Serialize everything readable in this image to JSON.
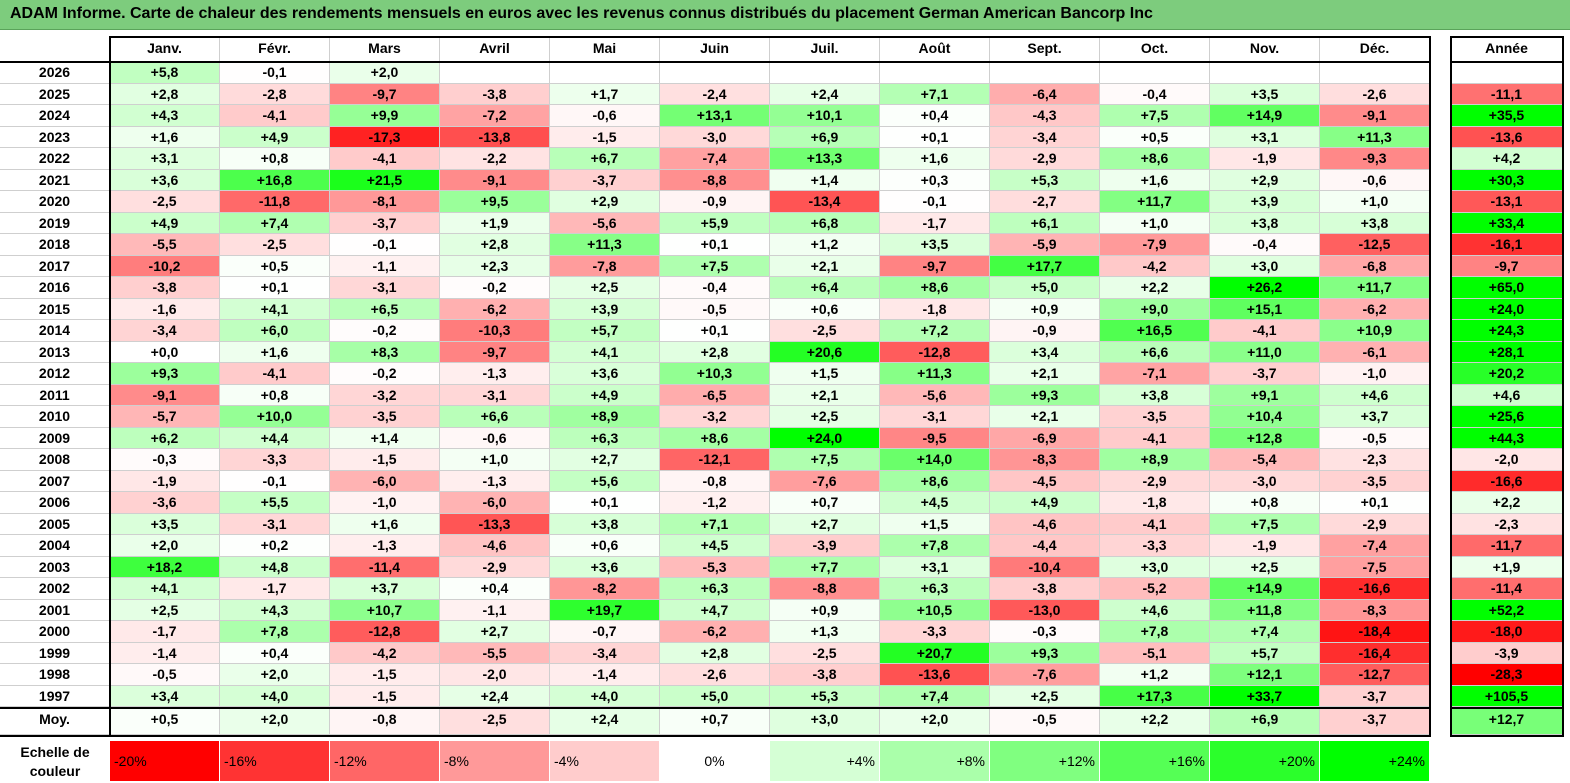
{
  "title": "ADAM Informe. Carte de chaleur des rendements mensuels en euros avec les revenus connus distribués du placement German American Bancorp Inc",
  "colors": {
    "title_bg": "#7dcc7d",
    "negative": "#ff0000",
    "neutral": "#ffffff",
    "positive": "#00ff00"
  },
  "chart_data": {
    "type": "heatmap",
    "months": [
      "Janv.",
      "Févr.",
      "Mars",
      "Avril",
      "Mai",
      "Juin",
      "Juil.",
      "Août",
      "Sept.",
      "Oct.",
      "Nov.",
      "Déc."
    ],
    "year_header": "Année",
    "average_label": "Moy.",
    "rows": [
      {
        "year": "2026",
        "values": [
          "+5,8",
          "-0,1",
          "+2,0",
          "",
          "",
          "",
          "",
          "",
          "",
          "",
          "",
          ""
        ],
        "annual": ""
      },
      {
        "year": "2025",
        "values": [
          "+2,8",
          "-2,8",
          "-9,7",
          "-3,8",
          "+1,7",
          "-2,4",
          "+2,4",
          "+7,1",
          "-6,4",
          "-0,4",
          "+3,5",
          "-2,6"
        ],
        "annual": "-11,1"
      },
      {
        "year": "2024",
        "values": [
          "+4,3",
          "-4,1",
          "+9,9",
          "-7,2",
          "-0,6",
          "+13,1",
          "+10,1",
          "+0,4",
          "-4,3",
          "+7,5",
          "+14,9",
          "-9,1"
        ],
        "annual": "+35,5"
      },
      {
        "year": "2023",
        "values": [
          "+1,6",
          "+4,9",
          "-17,3",
          "-13,8",
          "-1,5",
          "-3,0",
          "+6,9",
          "+0,1",
          "-3,4",
          "+0,5",
          "+3,1",
          "+11,3"
        ],
        "annual": "-13,6"
      },
      {
        "year": "2022",
        "values": [
          "+3,1",
          "+0,8",
          "-4,1",
          "-2,2",
          "+6,7",
          "-7,4",
          "+13,3",
          "+1,6",
          "-2,9",
          "+8,6",
          "-1,9",
          "-9,3"
        ],
        "annual": "+4,2"
      },
      {
        "year": "2021",
        "values": [
          "+3,6",
          "+16,8",
          "+21,5",
          "-9,1",
          "-3,7",
          "-8,8",
          "+1,4",
          "+0,3",
          "+5,3",
          "+1,6",
          "+2,9",
          "-0,6"
        ],
        "annual": "+30,3"
      },
      {
        "year": "2020",
        "values": [
          "-2,5",
          "-11,8",
          "-8,1",
          "+9,5",
          "+2,9",
          "-0,9",
          "-13,4",
          "-0,1",
          "-2,7",
          "+11,7",
          "+3,9",
          "+1,0"
        ],
        "annual": "-13,1"
      },
      {
        "year": "2019",
        "values": [
          "+4,9",
          "+7,4",
          "-3,7",
          "+1,9",
          "-5,6",
          "+5,9",
          "+6,8",
          "-1,7",
          "+6,1",
          "+1,0",
          "+3,8",
          "+3,8"
        ],
        "annual": "+33,4"
      },
      {
        "year": "2018",
        "values": [
          "-5,5",
          "-2,5",
          "-0,1",
          "+2,8",
          "+11,3",
          "+0,1",
          "+1,2",
          "+3,5",
          "-5,9",
          "-7,9",
          "-0,4",
          "-12,5"
        ],
        "annual": "-16,1"
      },
      {
        "year": "2017",
        "values": [
          "-10,2",
          "+0,5",
          "-1,1",
          "+2,3",
          "-7,8",
          "+7,5",
          "+2,1",
          "-9,7",
          "+17,7",
          "-4,2",
          "+3,0",
          "-6,8"
        ],
        "annual": "-9,7"
      },
      {
        "year": "2016",
        "values": [
          "-3,8",
          "+0,1",
          "-3,1",
          "-0,2",
          "+2,5",
          "-0,4",
          "+6,4",
          "+8,6",
          "+5,0",
          "+2,2",
          "+26,2",
          "+11,7"
        ],
        "annual": "+65,0"
      },
      {
        "year": "2015",
        "values": [
          "-1,6",
          "+4,1",
          "+6,5",
          "-6,2",
          "+3,9",
          "-0,5",
          "+0,6",
          "-1,8",
          "+0,9",
          "+9,0",
          "+15,1",
          "-6,2"
        ],
        "annual": "+24,0"
      },
      {
        "year": "2014",
        "values": [
          "-3,4",
          "+6,0",
          "-0,2",
          "-10,3",
          "+5,7",
          "+0,1",
          "-2,5",
          "+7,2",
          "-0,9",
          "+16,5",
          "-4,1",
          "+10,9"
        ],
        "annual": "+24,3"
      },
      {
        "year": "2013",
        "values": [
          "+0,0",
          "+1,6",
          "+8,3",
          "-9,7",
          "+4,1",
          "+2,8",
          "+20,6",
          "-12,8",
          "+3,4",
          "+6,6",
          "+11,0",
          "-6,1"
        ],
        "annual": "+28,1"
      },
      {
        "year": "2012",
        "values": [
          "+9,3",
          "-4,1",
          "-0,2",
          "-1,3",
          "+3,6",
          "+10,3",
          "+1,5",
          "+11,3",
          "+2,1",
          "-7,1",
          "-3,7",
          "-1,0"
        ],
        "annual": "+20,2"
      },
      {
        "year": "2011",
        "values": [
          "-9,1",
          "+0,8",
          "-3,2",
          "-3,1",
          "+4,9",
          "-6,5",
          "+2,1",
          "-5,6",
          "+9,3",
          "+3,8",
          "+9,1",
          "+4,6"
        ],
        "annual": "+4,6"
      },
      {
        "year": "2010",
        "values": [
          "-5,7",
          "+10,0",
          "-3,5",
          "+6,6",
          "+8,9",
          "-3,2",
          "+2,5",
          "-3,1",
          "+2,1",
          "-3,5",
          "+10,4",
          "+3,7"
        ],
        "annual": "+25,6"
      },
      {
        "year": "2009",
        "values": [
          "+6,2",
          "+4,4",
          "+1,4",
          "-0,6",
          "+6,3",
          "+8,6",
          "+24,0",
          "-9,5",
          "-6,9",
          "-4,1",
          "+12,8",
          "-0,5"
        ],
        "annual": "+44,3"
      },
      {
        "year": "2008",
        "values": [
          "-0,3",
          "-3,3",
          "-1,5",
          "+1,0",
          "+2,7",
          "-12,1",
          "+7,5",
          "+14,0",
          "-8,3",
          "+8,9",
          "-5,4",
          "-2,3"
        ],
        "annual": "-2,0"
      },
      {
        "year": "2007",
        "values": [
          "-1,9",
          "-0,1",
          "-6,0",
          "-1,3",
          "+5,6",
          "-0,8",
          "-7,6",
          "+8,6",
          "-4,5",
          "-2,9",
          "-3,0",
          "-3,5"
        ],
        "annual": "-16,6"
      },
      {
        "year": "2006",
        "values": [
          "-3,6",
          "+5,5",
          "-1,0",
          "-6,0",
          "+0,1",
          "-1,2",
          "+0,7",
          "+4,5",
          "+4,9",
          "-1,8",
          "+0,8",
          "+0,1"
        ],
        "annual": "+2,2"
      },
      {
        "year": "2005",
        "values": [
          "+3,5",
          "-3,1",
          "+1,6",
          "-13,3",
          "+3,8",
          "+7,1",
          "+2,7",
          "+1,5",
          "-4,6",
          "-4,1",
          "+7,5",
          "-2,9"
        ],
        "annual": "-2,3"
      },
      {
        "year": "2004",
        "values": [
          "+2,0",
          "+0,2",
          "-1,3",
          "-4,6",
          "+0,6",
          "+4,5",
          "-3,9",
          "+7,8",
          "-4,4",
          "-3,3",
          "-1,9",
          "-7,4"
        ],
        "annual": "-11,7"
      },
      {
        "year": "2003",
        "values": [
          "+18,2",
          "+4,8",
          "-11,4",
          "-2,9",
          "+3,6",
          "-5,3",
          "+7,7",
          "+3,1",
          "-10,4",
          "+3,0",
          "+2,5",
          "-7,5"
        ],
        "annual": "+1,9"
      },
      {
        "year": "2002",
        "values": [
          "+4,1",
          "-1,7",
          "+3,7",
          "+0,4",
          "-8,2",
          "+6,3",
          "-8,8",
          "+6,3",
          "-3,8",
          "-5,2",
          "+14,9",
          "-16,6"
        ],
        "annual": "-11,4"
      },
      {
        "year": "2001",
        "values": [
          "+2,5",
          "+4,3",
          "+10,7",
          "-1,1",
          "+19,7",
          "+4,7",
          "+0,9",
          "+10,5",
          "-13,0",
          "+4,6",
          "+11,8",
          "-8,3"
        ],
        "annual": "+52,2"
      },
      {
        "year": "2000",
        "values": [
          "-1,7",
          "+7,8",
          "-12,8",
          "+2,7",
          "-0,7",
          "-6,2",
          "+1,3",
          "-3,3",
          "-0,3",
          "+7,8",
          "+7,4",
          "-18,4"
        ],
        "annual": "-18,0"
      },
      {
        "year": "1999",
        "values": [
          "-1,4",
          "+0,4",
          "-4,2",
          "-5,5",
          "-3,4",
          "+2,8",
          "-2,5",
          "+20,7",
          "+9,3",
          "-5,1",
          "+5,7",
          "-16,4"
        ],
        "annual": "-3,9"
      },
      {
        "year": "1998",
        "values": [
          "-0,5",
          "+2,0",
          "-1,5",
          "-2,0",
          "-1,4",
          "-2,6",
          "-3,8",
          "-13,6",
          "-7,6",
          "+1,2",
          "+12,1",
          "-12,7"
        ],
        "annual": "-28,3"
      },
      {
        "year": "1997",
        "values": [
          "+3,4",
          "+4,0",
          "-1,5",
          "+2,4",
          "+4,0",
          "+5,0",
          "+5,3",
          "+7,4",
          "+2,5",
          "+17,3",
          "+33,7",
          "-3,7"
        ],
        "annual": "+105,5"
      }
    ],
    "average": {
      "values": [
        "+0,5",
        "+2,0",
        "-0,8",
        "-2,5",
        "+2,4",
        "+0,7",
        "+3,0",
        "+2,0",
        "-0,5",
        "+2,2",
        "+6,9",
        "-3,7"
      ],
      "annual": "+12,7"
    },
    "scale_label": "Echelle de couleur",
    "scale": [
      "-20%",
      "-16%",
      "-12%",
      "-8%",
      "-4%",
      "0%",
      "+4%",
      "+8%",
      "+12%",
      "+16%",
      "+20%",
      "+24%"
    ],
    "scale_values": [
      -20,
      -16,
      -12,
      -8,
      -4,
      0,
      4,
      8,
      12,
      16,
      20,
      24
    ]
  }
}
